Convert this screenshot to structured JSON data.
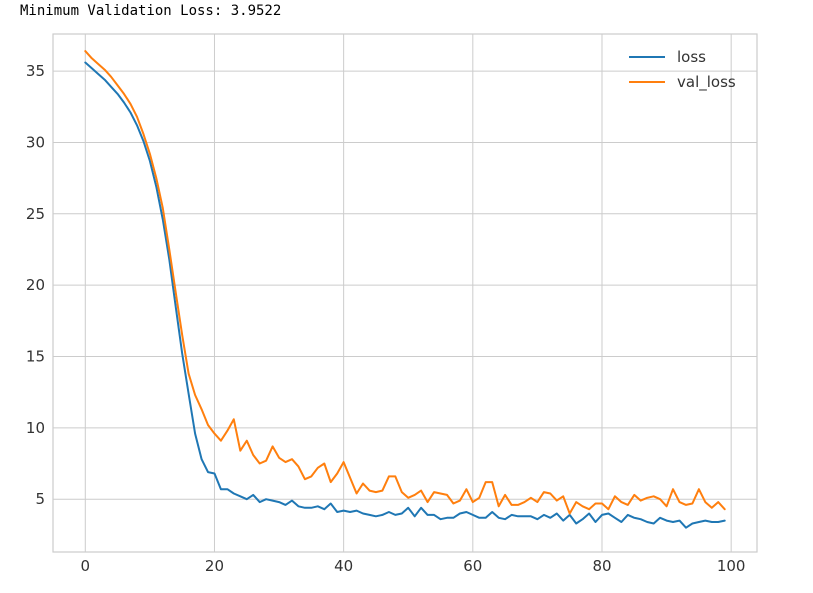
{
  "header": {
    "text": "Minimum Validation Loss: 3.9522"
  },
  "chart_data": {
    "type": "line",
    "title": "",
    "xlabel": "",
    "ylabel": "",
    "xlim": [
      -5,
      104
    ],
    "ylim": [
      1.3,
      37.6
    ],
    "xticks": [
      0,
      20,
      40,
      60,
      80,
      100
    ],
    "yticks": [
      5,
      10,
      15,
      20,
      25,
      30,
      35
    ],
    "grid": true,
    "legend": "top-right",
    "x": [
      0,
      1,
      2,
      3,
      4,
      5,
      6,
      7,
      8,
      9,
      10,
      11,
      12,
      13,
      14,
      15,
      16,
      17,
      18,
      19,
      20,
      21,
      22,
      23,
      24,
      25,
      26,
      27,
      28,
      29,
      30,
      31,
      32,
      33,
      34,
      35,
      36,
      37,
      38,
      39,
      40,
      41,
      42,
      43,
      44,
      45,
      46,
      47,
      48,
      49,
      50,
      51,
      52,
      53,
      54,
      55,
      56,
      57,
      58,
      59,
      60,
      61,
      62,
      63,
      64,
      65,
      66,
      67,
      68,
      69,
      70,
      71,
      72,
      73,
      74,
      75,
      76,
      77,
      78,
      79,
      80,
      81,
      82,
      83,
      84,
      85,
      86,
      87,
      88,
      89,
      90,
      91,
      92,
      93,
      94,
      95,
      96,
      97,
      98,
      99
    ],
    "series": [
      {
        "name": "loss",
        "color": "#1f77b4",
        "values": [
          35.6,
          35.2,
          34.8,
          34.4,
          33.9,
          33.4,
          32.8,
          32.1,
          31.2,
          30.1,
          28.7,
          26.9,
          24.6,
          21.8,
          18.5,
          15.2,
          12.4,
          9.6,
          7.8,
          6.9,
          6.8,
          5.7,
          5.7,
          5.4,
          5.2,
          5.0,
          5.3,
          4.8,
          5.0,
          4.9,
          4.8,
          4.6,
          4.9,
          4.5,
          4.4,
          4.4,
          4.5,
          4.3,
          4.7,
          4.1,
          4.2,
          4.1,
          4.2,
          4.0,
          3.9,
          3.8,
          3.9,
          4.1,
          3.9,
          4.0,
          4.4,
          3.8,
          4.4,
          3.9,
          3.9,
          3.6,
          3.7,
          3.7,
          4.0,
          4.1,
          3.9,
          3.7,
          3.7,
          4.1,
          3.7,
          3.6,
          3.9,
          3.8,
          3.8,
          3.8,
          3.6,
          3.9,
          3.7,
          4.0,
          3.5,
          3.9,
          3.3,
          3.6,
          4.0,
          3.4,
          3.9,
          4.0,
          3.7,
          3.4,
          3.9,
          3.7,
          3.6,
          3.4,
          3.3,
          3.7,
          3.5,
          3.4,
          3.5,
          3.0,
          3.3,
          3.4,
          3.5,
          3.4,
          3.4,
          3.5
        ]
      },
      {
        "name": "val_loss",
        "color": "#ff7f0e",
        "values": [
          36.4,
          35.9,
          35.5,
          35.1,
          34.6,
          34.0,
          33.4,
          32.7,
          31.8,
          30.6,
          29.2,
          27.5,
          25.4,
          22.5,
          19.5,
          16.5,
          13.8,
          12.3,
          11.3,
          10.2,
          9.6,
          9.1,
          9.8,
          10.6,
          8.4,
          9.1,
          8.1,
          7.5,
          7.7,
          8.7,
          7.9,
          7.6,
          7.8,
          7.3,
          6.4,
          6.6,
          7.2,
          7.5,
          6.2,
          6.8,
          7.6,
          6.5,
          5.4,
          6.1,
          5.6,
          5.5,
          5.6,
          6.6,
          6.6,
          5.5,
          5.1,
          5.3,
          5.6,
          4.8,
          5.5,
          5.4,
          5.3,
          4.7,
          4.9,
          5.7,
          4.8,
          5.1,
          6.2,
          6.2,
          4.5,
          5.3,
          4.6,
          4.6,
          4.8,
          5.1,
          4.8,
          5.5,
          5.4,
          4.9,
          5.2,
          4.0,
          4.8,
          4.5,
          4.3,
          4.7,
          4.7,
          4.3,
          5.2,
          4.8,
          4.6,
          5.3,
          4.9,
          5.1,
          5.2,
          5.0,
          4.5,
          5.7,
          4.8,
          4.6,
          4.7,
          5.7,
          4.8,
          4.4,
          4.8,
          4.3
        ]
      }
    ]
  }
}
